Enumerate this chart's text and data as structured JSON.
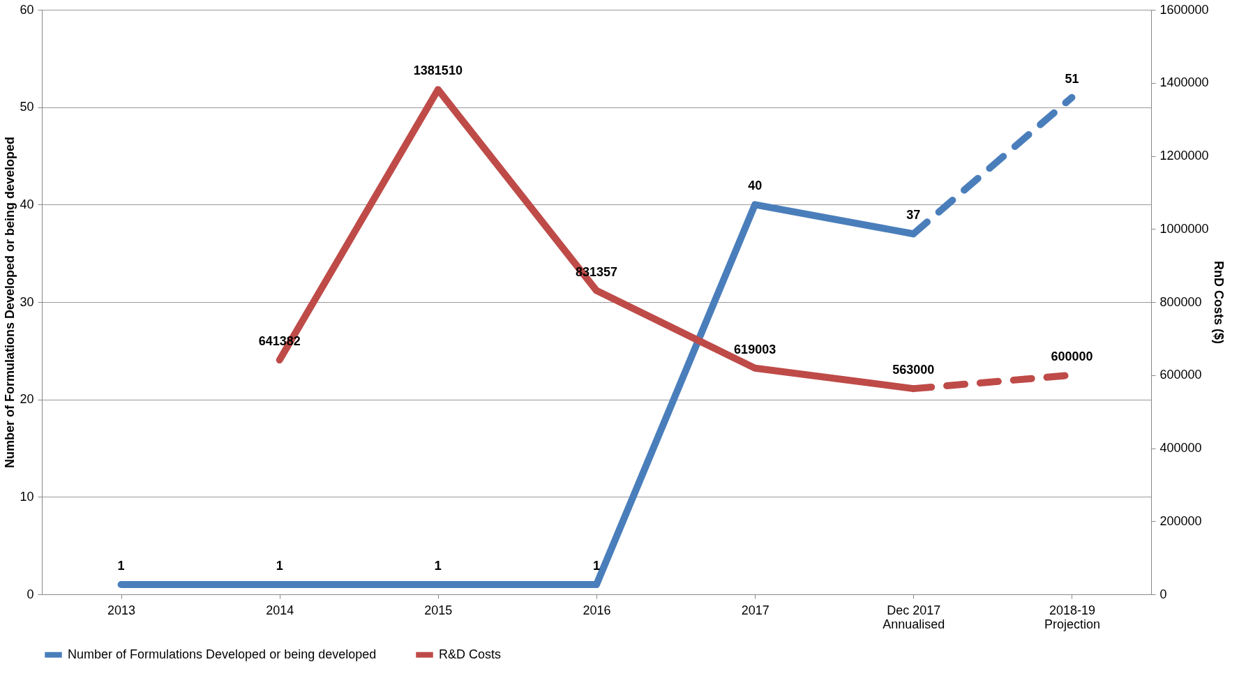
{
  "chart_data": {
    "type": "line",
    "categories": [
      "2013",
      "2014",
      "2015",
      "2016",
      "2017",
      "Dec 2017\nAnnualised",
      "2018-19\nProjection"
    ],
    "ylabel": "Number of Formulations Developed or being developed",
    "y2label": "RnD Costs ($)",
    "ylim": [
      0,
      60
    ],
    "yticks": [
      0,
      10,
      20,
      30,
      40,
      50,
      60
    ],
    "y2lim": [
      0,
      1600000
    ],
    "y2ticks": [
      0,
      200000,
      400000,
      600000,
      800000,
      1000000,
      1200000,
      1400000,
      1600000
    ],
    "grid": "y",
    "legend": "bottom",
    "data_labels": true,
    "series": [
      {
        "name": "Number of Formulations Developed or being developed",
        "color": "#4a7ebb",
        "line_style": [
          "solid",
          "solid",
          "solid",
          "solid",
          "solid",
          "dashed"
        ],
        "values": [
          1,
          1,
          1,
          1,
          40,
          37,
          51
        ]
      },
      {
        "name": "R&D Costs",
        "color": "#be4b48",
        "axis": "y2",
        "line_style": [
          "solid",
          "solid",
          "solid",
          "solid",
          "solid",
          "dashed"
        ],
        "values": [
          null,
          641382,
          1381510,
          831357,
          619003,
          563000,
          600000
        ]
      }
    ]
  }
}
